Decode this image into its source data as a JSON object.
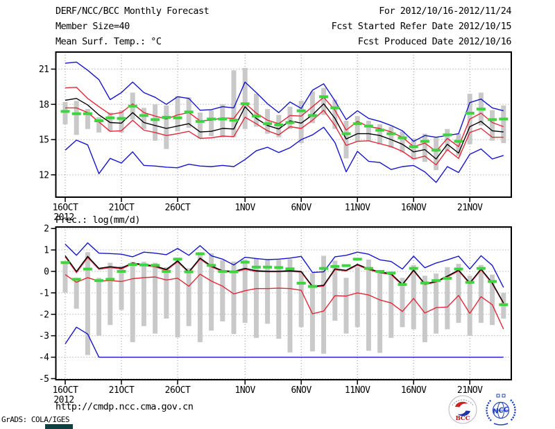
{
  "header": {
    "title": "DERF/NCC/BCC Monthly Forecast",
    "member_size": "Member Size=40",
    "for_range": "For 2012/10/16-2012/11/24",
    "fcst_started": "Fcst Started Refer Date 2012/10/15",
    "fcst_produced": "Fcst Produced Date 2012/10/16"
  },
  "footer": {
    "url": "http://cmdp.ncc.cma.gov.cn",
    "grads_credit": "GrADS: COLA/IGES",
    "bcc_logo_text": "BCC",
    "ncc_logo_text": "NCC"
  },
  "colors": {
    "blue": "#1414cd",
    "red": "#e22839",
    "black": "#000000",
    "green": "#3fd43f",
    "gray": "#c9c9c9",
    "grid": "#909090",
    "frame": "#000000"
  },
  "chart_data": [
    {
      "type": "line",
      "title": "Mean Surf. Temp.: °C",
      "ylim": [
        10.1,
        22.45
      ],
      "yticks": [
        21,
        18,
        15,
        12
      ],
      "grid": "dotted",
      "legend_position": "none",
      "year_label": "2012",
      "xticks": [
        {
          "day": 0,
          "label": "16OCT"
        },
        {
          "day": 5,
          "label": "21OCT"
        },
        {
          "day": 10,
          "label": "26OCT"
        },
        {
          "day": 16,
          "label": "1NOV"
        },
        {
          "day": 21,
          "label": "6NOV"
        },
        {
          "day": 26,
          "label": "11NOV"
        },
        {
          "day": 31,
          "label": "16NOV"
        },
        {
          "day": 36,
          "label": "21NOV"
        }
      ],
      "series": [
        {
          "name": "ensemble-spread",
          "type": "bar",
          "color": "gray",
          "top": [
            18.2,
            18.3,
            17.6,
            16.9,
            17.3,
            17.5,
            19.0,
            17.7,
            18.0,
            17.9,
            18.7,
            18.6,
            17.3,
            17.5,
            18.0,
            20.9,
            21.1,
            18.9,
            17.6,
            17.1,
            17.8,
            18.3,
            19.1,
            19.4,
            18.4,
            16.6,
            17.0,
            16.6,
            16.3,
            16.1,
            15.7,
            15.1,
            15.5,
            15.2,
            15.9,
            15.5,
            18.9,
            19.0,
            17.5,
            17.9
          ],
          "bottom": [
            16.3,
            15.4,
            15.9,
            15.6,
            15.7,
            15.6,
            16.7,
            15.9,
            14.9,
            14.2,
            15.7,
            16.0,
            15.1,
            15.3,
            15.2,
            15.2,
            15.9,
            16.1,
            15.5,
            15.2,
            15.9,
            14.7,
            16.4,
            17.1,
            15.9,
            13.4,
            14.8,
            14.9,
            14.6,
            14.3,
            13.9,
            13.3,
            13.1,
            12.4,
            14.0,
            13.6,
            14.6,
            16.2,
            14.9,
            14.7
          ]
        },
        {
          "name": "ensemble-max",
          "type": "line",
          "color": "blue",
          "values": [
            21.5,
            21.6,
            20.9,
            20.1,
            18.4,
            19.0,
            19.9,
            19.0,
            18.6,
            18.0,
            18.65,
            18.5,
            17.5,
            17.55,
            17.8,
            17.7,
            19.9,
            19.0,
            18.05,
            17.3,
            18.2,
            17.65,
            19.2,
            19.75,
            18.3,
            16.7,
            17.45,
            16.8,
            16.55,
            16.2,
            15.75,
            14.85,
            15.35,
            15.2,
            15.35,
            15.5,
            18.15,
            18.45,
            17.7,
            17.45
          ]
        },
        {
          "name": "upper-quartile",
          "type": "line",
          "color": "red",
          "values": [
            19.4,
            19.45,
            18.5,
            17.8,
            17.15,
            17.3,
            18.05,
            17.3,
            17.0,
            16.75,
            17.1,
            17.3,
            16.6,
            16.65,
            16.85,
            16.8,
            18.1,
            17.25,
            16.65,
            16.35,
            17.05,
            17.0,
            17.8,
            18.6,
            17.5,
            15.8,
            16.55,
            16.1,
            15.95,
            15.65,
            15.2,
            14.4,
            14.7,
            14.0,
            15.1,
            14.4,
            16.75,
            17.25,
            16.45,
            16.1
          ]
        },
        {
          "name": "ensemble-mean",
          "type": "line",
          "color": "black",
          "values": [
            18.35,
            18.5,
            17.95,
            17.1,
            16.45,
            16.4,
            17.3,
            16.45,
            16.2,
            15.95,
            16.15,
            16.35,
            15.65,
            15.7,
            15.95,
            15.9,
            17.8,
            16.8,
            16.2,
            15.9,
            16.6,
            16.4,
            17.1,
            18.05,
            16.8,
            15.05,
            15.5,
            15.5,
            15.35,
            15.0,
            14.6,
            13.95,
            14.15,
            13.35,
            14.6,
            13.85,
            16.1,
            16.55,
            15.75,
            15.65
          ]
        },
        {
          "name": "lower-quartile",
          "type": "line",
          "color": "red",
          "values": [
            17.7,
            17.7,
            17.3,
            16.5,
            15.7,
            15.75,
            16.65,
            15.8,
            15.6,
            15.35,
            15.5,
            15.7,
            15.1,
            15.15,
            15.3,
            15.25,
            16.9,
            16.35,
            15.75,
            15.4,
            16.1,
            15.95,
            16.65,
            17.5,
            16.2,
            14.5,
            14.85,
            14.9,
            14.65,
            14.4,
            14.0,
            13.35,
            13.6,
            12.85,
            14.15,
            13.4,
            15.6,
            15.95,
            15.2,
            15.2
          ]
        },
        {
          "name": "ensemble-min",
          "type": "line",
          "color": "blue",
          "values": [
            14.1,
            14.95,
            14.55,
            12.1,
            13.4,
            13.0,
            13.95,
            12.8,
            12.75,
            12.65,
            12.6,
            12.9,
            12.75,
            12.7,
            12.8,
            12.7,
            13.3,
            14.05,
            14.35,
            13.9,
            14.3,
            15.0,
            15.4,
            16.05,
            14.75,
            12.25,
            14.0,
            13.15,
            13.05,
            12.45,
            12.7,
            12.8,
            12.25,
            11.35,
            12.7,
            12.2,
            13.75,
            14.2,
            13.35,
            13.65
          ]
        },
        {
          "name": "climatology",
          "type": "dash",
          "color": "green",
          "values": [
            17.4,
            17.2,
            17.2,
            16.6,
            16.85,
            16.8,
            17.85,
            17.05,
            16.7,
            16.9,
            16.85,
            17.35,
            16.55,
            16.75,
            16.75,
            16.65,
            18.05,
            17.0,
            16.35,
            16.25,
            16.45,
            17.45,
            17.05,
            18.65,
            17.7,
            15.5,
            16.35,
            16.15,
            15.8,
            15.5,
            15.15,
            14.4,
            14.85,
            14.1,
            15.4,
            14.85,
            17.25,
            17.6,
            16.7,
            16.75
          ]
        }
      ]
    },
    {
      "type": "line",
      "title": "Prec.: log(mm/d)",
      "ylim": [
        -5.05,
        2.07
      ],
      "yticks": [
        2,
        1,
        0,
        -1,
        -2,
        -3,
        -4,
        -5
      ],
      "grid": "dotted",
      "legend_position": "none",
      "year_label": "2012",
      "xticks": [
        {
          "day": 0,
          "label": "16OCT"
        },
        {
          "day": 5,
          "label": "21OCT"
        },
        {
          "day": 10,
          "label": "26OCT"
        },
        {
          "day": 16,
          "label": "1NOV"
        },
        {
          "day": 21,
          "label": "6NOV"
        },
        {
          "day": 26,
          "label": "11NOV"
        },
        {
          "day": 31,
          "label": "16NOV"
        },
        {
          "day": 36,
          "label": "21NOV"
        }
      ],
      "series": [
        {
          "name": "ensemble-spread",
          "type": "bar",
          "color": "gray",
          "top": [
            0.46,
            -0.3,
            0.9,
            -0.3,
            0.4,
            0.25,
            0.45,
            0.45,
            0.4,
            0.2,
            0.65,
            0.15,
            0.9,
            0.84,
            0.52,
            0.46,
            0.55,
            0.6,
            0.52,
            0.54,
            0.57,
            -0.02,
            -0.08,
            0.73,
            0.5,
            -0.3,
            0.2,
            0.55,
            -0.05,
            0.0,
            -0.3,
            0.3,
            -0.2,
            -0.1,
            0.2,
            0.35,
            -0.2,
            0.3,
            -0.15,
            -1.0
          ],
          "bottom": [
            -0.99,
            -1.74,
            -3.9,
            -3.0,
            -2.5,
            -1.8,
            -3.3,
            -2.55,
            -2.9,
            -2.2,
            -3.08,
            -2.55,
            -3.3,
            -2.76,
            -2.33,
            -2.92,
            -2.4,
            -3.1,
            -2.44,
            -3.14,
            -3.78,
            -2.6,
            -3.73,
            -3.84,
            -2.3,
            -2.9,
            -2.6,
            -3.7,
            -3.8,
            -3.1,
            -2.6,
            -2.7,
            -3.3,
            -2.9,
            -2.7,
            -2.4,
            -3.0,
            -2.4,
            -2.5,
            -2.2
          ]
        },
        {
          "name": "ensemble-max",
          "type": "line",
          "color": "blue",
          "values": [
            1.27,
            0.75,
            1.33,
            0.85,
            0.83,
            0.8,
            0.68,
            0.9,
            0.85,
            0.78,
            1.07,
            0.75,
            1.2,
            0.73,
            0.57,
            0.3,
            0.66,
            0.6,
            0.55,
            0.57,
            0.62,
            0.7,
            -0.05,
            -0.02,
            0.68,
            0.75,
            0.9,
            0.8,
            0.54,
            0.46,
            0.11,
            0.71,
            0.17,
            0.39,
            0.54,
            0.71,
            0.11,
            0.73,
            0.28,
            -0.75
          ]
        },
        {
          "name": "upper-quartile",
          "type": "line",
          "color": "red",
          "values": [
            0.68,
            -0.06,
            0.65,
            0.1,
            0.18,
            0.12,
            0.35,
            0.28,
            0.21,
            0.05,
            0.45,
            -0.06,
            0.58,
            0.21,
            0.0,
            -0.04,
            0.1,
            0.0,
            -0.02,
            -0.02,
            0.0,
            -0.03,
            -0.73,
            -0.68,
            0.08,
            0.02,
            0.29,
            0.08,
            -0.06,
            -0.15,
            -0.64,
            0.03,
            -0.61,
            -0.5,
            -0.26,
            0.02,
            -0.57,
            0.07,
            -0.57,
            -1.5
          ]
        },
        {
          "name": "ensemble-mean",
          "type": "line",
          "color": "black",
          "values": [
            0.73,
            0.0,
            0.7,
            0.14,
            0.22,
            0.16,
            0.39,
            0.32,
            0.25,
            0.09,
            0.49,
            -0.02,
            0.62,
            0.25,
            0.03,
            0.0,
            0.14,
            0.03,
            0.01,
            0.01,
            0.03,
            0.0,
            -0.7,
            -0.65,
            0.12,
            0.05,
            0.33,
            0.12,
            -0.02,
            -0.11,
            -0.61,
            0.06,
            -0.58,
            -0.47,
            -0.22,
            0.06,
            -0.54,
            0.11,
            -0.54,
            -1.47
          ]
        },
        {
          "name": "lower-quartile",
          "type": "line",
          "color": "red",
          "values": [
            -0.15,
            -0.51,
            -0.29,
            -0.45,
            -0.43,
            -0.47,
            -0.34,
            -0.29,
            -0.26,
            -0.4,
            -0.32,
            -0.69,
            -0.13,
            -0.45,
            -0.69,
            -1.05,
            -0.9,
            -0.8,
            -0.8,
            -0.78,
            -0.8,
            -0.88,
            -1.98,
            -1.85,
            -1.13,
            -1.15,
            -1.0,
            -1.1,
            -1.33,
            -1.47,
            -1.87,
            -1.26,
            -1.94,
            -1.69,
            -1.66,
            -1.12,
            -1.96,
            -1.18,
            -1.55,
            -2.69
          ]
        },
        {
          "name": "ensemble-min",
          "type": "line",
          "color": "blue",
          "values": [
            -3.38,
            -2.6,
            -2.92,
            -4.0,
            -4.0,
            -4.0,
            -4.0,
            -4.0,
            -4.0,
            -4.0,
            -4.0,
            -4.0,
            -4.0,
            -4.0,
            -4.0,
            -4.0,
            -4.0,
            -4.0,
            -4.0,
            -4.0,
            -4.0,
            -4.0,
            -4.0,
            -4.0,
            -4.0,
            -4.0,
            -4.0,
            -4.0,
            -4.0,
            -4.0,
            -4.0,
            -4.0,
            -4.0,
            -4.0,
            -4.0,
            -4.0,
            -4.0,
            -4.0,
            -4.0,
            -4.0
          ]
        },
        {
          "name": "climatology",
          "type": "dash",
          "color": "green",
          "values": [
            0.41,
            -0.37,
            0.11,
            -0.43,
            -0.37,
            0.0,
            0.32,
            0.3,
            0.28,
            0.0,
            0.57,
            -0.02,
            0.82,
            0.28,
            0.0,
            -0.02,
            0.43,
            0.2,
            0.2,
            0.18,
            0.12,
            -0.55,
            -0.7,
            0.14,
            0.23,
            0.27,
            0.57,
            0.14,
            0.0,
            -0.08,
            -0.61,
            0.14,
            -0.54,
            -0.43,
            -0.32,
            0.11,
            -0.51,
            0.14,
            -0.47,
            -1.55
          ]
        }
      ]
    }
  ]
}
